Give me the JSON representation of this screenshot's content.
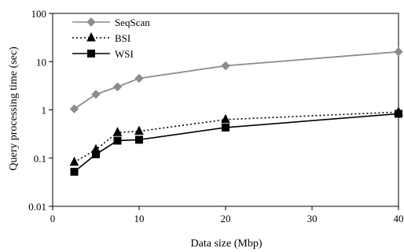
{
  "chart_data": {
    "type": "line",
    "xlabel": "Data size (Mbp)",
    "ylabel": "Query processing time (sec)",
    "xlim": [
      0,
      40
    ],
    "ylim": [
      0.01,
      100
    ],
    "y_scale": "log",
    "x_ticks": [
      "0",
      "10",
      "20",
      "30",
      "40"
    ],
    "y_ticks": [
      "0.01",
      "0.1",
      "1",
      "10",
      "100"
    ],
    "grid": false,
    "legend_position": "top-left",
    "series": [
      {
        "name": "SeqScan",
        "marker": "diamond",
        "line_style": "solid",
        "color": "#8c8c8c",
        "x": [
          2.5,
          5,
          7.5,
          10,
          20,
          40
        ],
        "y": [
          1.05,
          2.1,
          3.0,
          4.5,
          8.2,
          16
        ]
      },
      {
        "name": "BSI",
        "marker": "triangle",
        "line_style": "dotted",
        "color": "#000000",
        "x": [
          2.5,
          5,
          7.5,
          10,
          20,
          40
        ],
        "y": [
          0.082,
          0.15,
          0.34,
          0.36,
          0.63,
          0.9
        ]
      },
      {
        "name": "WSI",
        "marker": "square",
        "line_style": "solid",
        "color": "#000000",
        "x": [
          2.5,
          5,
          7.5,
          10,
          20,
          40
        ],
        "y": [
          0.052,
          0.12,
          0.23,
          0.24,
          0.43,
          0.83
        ]
      }
    ]
  }
}
